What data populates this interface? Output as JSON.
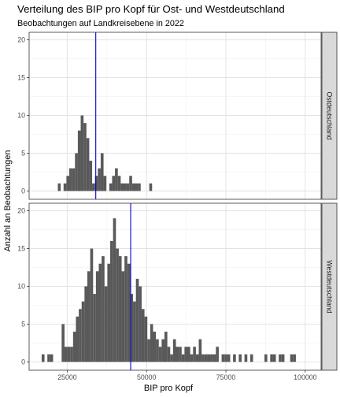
{
  "chart_data": {
    "type": "histogram",
    "title": "Verteilung des BIP pro Kopf für Ost- und Westdeutschland",
    "subtitle": "Beobachtungen auf Landkreisebene in 2022",
    "xlabel": "BIP pro Kopf",
    "ylabel": "Anzahl an Beobachtungen",
    "xlim": [
      13000,
      105000
    ],
    "ylim": [
      -1.1,
      21
    ],
    "x_ticks": [
      25000,
      50000,
      75000,
      100000
    ],
    "x_tick_labels": [
      "25000",
      "50000",
      "75000",
      "100000"
    ],
    "y_ticks": [
      0,
      5,
      10,
      15,
      20
    ],
    "y_tick_labels": [
      "0",
      "5",
      "10",
      "15",
      "20"
    ],
    "bin_width": 900,
    "grid": true,
    "bar_color": "#595959",
    "panels": [
      {
        "name": "Ostdeutschland",
        "mean_line": 34000,
        "mean_line_color": "#0000cc",
        "bins": [
          [
            22500,
            1
          ],
          [
            24300,
            1
          ],
          [
            25200,
            2
          ],
          [
            26100,
            3
          ],
          [
            27000,
            3
          ],
          [
            27900,
            5
          ],
          [
            28800,
            8
          ],
          [
            29700,
            10
          ],
          [
            30600,
            9
          ],
          [
            31500,
            7
          ],
          [
            32400,
            4
          ],
          [
            33300,
            1
          ],
          [
            34200,
            2
          ],
          [
            35100,
            3
          ],
          [
            36000,
            5
          ],
          [
            36900,
            2
          ],
          [
            38700,
            1
          ],
          [
            39600,
            2
          ],
          [
            40500,
            3
          ],
          [
            41400,
            2
          ],
          [
            42300,
            1
          ],
          [
            43200,
            1
          ],
          [
            44100,
            1
          ],
          [
            45000,
            2
          ],
          [
            45900,
            1
          ],
          [
            46800,
            1
          ],
          [
            47700,
            1
          ],
          [
            51300,
            1
          ]
        ]
      },
      {
        "name": "Westdeutschland",
        "mean_line": 45000,
        "mean_line_color": "#0000cc",
        "bins": [
          [
            17400,
            1
          ],
          [
            19200,
            1
          ],
          [
            20100,
            1
          ],
          [
            23700,
            5
          ],
          [
            24600,
            2
          ],
          [
            25500,
            2
          ],
          [
            26400,
            2
          ],
          [
            27300,
            4
          ],
          [
            28200,
            6
          ],
          [
            29100,
            7
          ],
          [
            30000,
            8
          ],
          [
            30900,
            10
          ],
          [
            31800,
            12
          ],
          [
            32700,
            15
          ],
          [
            33600,
            9
          ],
          [
            34500,
            12
          ],
          [
            35400,
            13
          ],
          [
            36300,
            14
          ],
          [
            37200,
            10
          ],
          [
            38100,
            13
          ],
          [
            39000,
            16
          ],
          [
            39900,
            19
          ],
          [
            40800,
            15
          ],
          [
            41700,
            14
          ],
          [
            42600,
            12
          ],
          [
            43500,
            14
          ],
          [
            44400,
            13
          ],
          [
            45300,
            9
          ],
          [
            46200,
            8
          ],
          [
            47100,
            11
          ],
          [
            48000,
            10
          ],
          [
            48900,
            7
          ],
          [
            49800,
            6
          ],
          [
            50700,
            3
          ],
          [
            51600,
            5
          ],
          [
            52500,
            4
          ],
          [
            53400,
            3
          ],
          [
            54300,
            2
          ],
          [
            55200,
            3
          ],
          [
            56100,
            4
          ],
          [
            57000,
            2
          ],
          [
            57900,
            1
          ],
          [
            58800,
            3
          ],
          [
            59700,
            2
          ],
          [
            60600,
            2
          ],
          [
            61500,
            1
          ],
          [
            62400,
            2
          ],
          [
            63300,
            2
          ],
          [
            64200,
            1
          ],
          [
            65100,
            2
          ],
          [
            66000,
            1
          ],
          [
            66900,
            3
          ],
          [
            67800,
            1
          ],
          [
            68700,
            1
          ],
          [
            69600,
            1
          ],
          [
            70500,
            1
          ],
          [
            71400,
            1
          ],
          [
            72300,
            2
          ],
          [
            74100,
            1
          ],
          [
            75000,
            1
          ],
          [
            75900,
            1
          ],
          [
            77700,
            1
          ],
          [
            79500,
            1
          ],
          [
            81300,
            1
          ],
          [
            83100,
            1
          ],
          [
            87600,
            1
          ],
          [
            89400,
            1
          ],
          [
            90300,
            1
          ],
          [
            92100,
            1
          ],
          [
            93000,
            1
          ],
          [
            95700,
            1
          ],
          [
            96600,
            1
          ]
        ]
      }
    ]
  }
}
